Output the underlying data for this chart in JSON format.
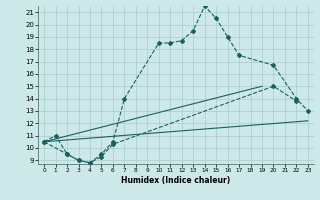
{
  "xlabel": "Humidex (Indice chaleur)",
  "background_color": "#cce8e8",
  "grid_color": "#aacccc",
  "line_color": "#1a6060",
  "xlim": [
    -0.5,
    23.5
  ],
  "ylim": [
    8.7,
    21.5
  ],
  "xticks": [
    0,
    1,
    2,
    3,
    4,
    5,
    6,
    7,
    8,
    9,
    10,
    11,
    12,
    13,
    14,
    15,
    16,
    17,
    18,
    19,
    20,
    21,
    22,
    23
  ],
  "yticks": [
    9,
    10,
    11,
    12,
    13,
    14,
    15,
    16,
    17,
    18,
    19,
    20,
    21
  ],
  "s1x": [
    0,
    1,
    2,
    3,
    4,
    5,
    6,
    7,
    10,
    11,
    12,
    13,
    14,
    15,
    16,
    17,
    20,
    22,
    23
  ],
  "s1y": [
    10.5,
    11.0,
    9.5,
    9.0,
    8.8,
    9.5,
    10.5,
    14.0,
    18.5,
    18.5,
    18.7,
    19.5,
    21.5,
    20.5,
    19.0,
    17.5,
    16.7,
    14.0,
    13.0
  ],
  "s2x": [
    0,
    2,
    3,
    4,
    5,
    6,
    20,
    22
  ],
  "s2y": [
    10.5,
    9.5,
    9.0,
    8.8,
    9.3,
    10.3,
    15.0,
    13.8
  ],
  "s3x": [
    0,
    19
  ],
  "s3y": [
    10.5,
    15.0
  ],
  "s4x": [
    0,
    23
  ],
  "s4y": [
    10.5,
    12.2
  ]
}
